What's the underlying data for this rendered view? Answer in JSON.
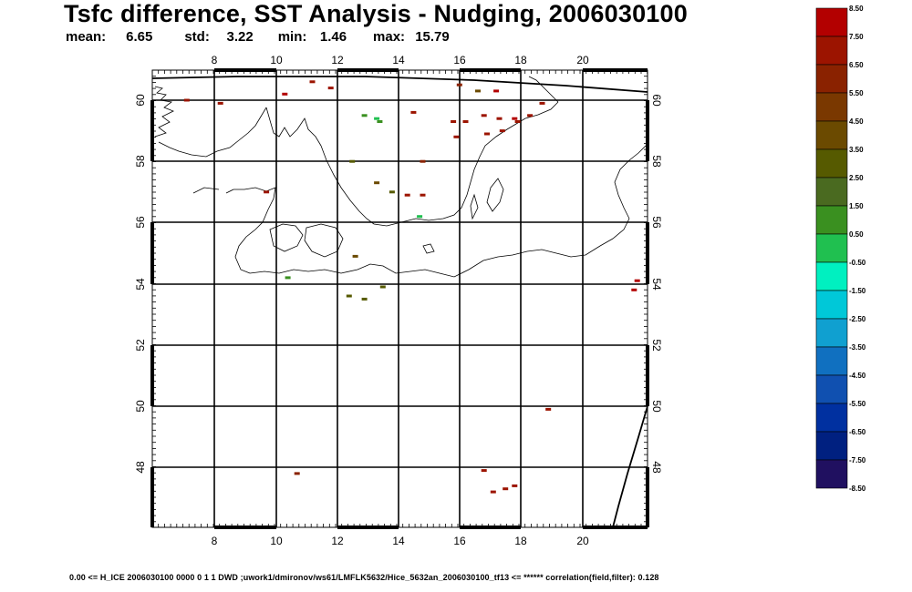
{
  "title": "Tsfc difference, SST Analysis - Nudging, 2006030100",
  "stats": {
    "mean_label": "mean:",
    "mean": "6.65",
    "std_label": "std:",
    "std": "3.22",
    "min_label": "min:",
    "min": "1.46",
    "max_label": "max:",
    "max": "15.79"
  },
  "footer": "0.00  <=  H_ICE 2006030100 0000 0 1 1 DWD ;uwork1/dmironov/ws61/LMFLK5632/Hice_5632an_2006030100_tf13  <=  ******    correlation(field,filter): 0.128",
  "map": {
    "lon_ticks": [
      "8",
      "10",
      "12",
      "14",
      "16",
      "18",
      "20"
    ],
    "lat_ticks": [
      "60",
      "58",
      "56",
      "54",
      "52",
      "50",
      "48"
    ]
  },
  "colorbar": {
    "labels": [
      "8.50",
      "7.50",
      "6.50",
      "5.50",
      "4.50",
      "3.50",
      "2.50",
      "1.50",
      "0.50",
      "-0.50",
      "-1.50",
      "-2.50",
      "-3.50",
      "-4.50",
      "-5.50",
      "-6.50",
      "-7.50",
      "-8.50"
    ],
    "colors": [
      "#b30000",
      "#9c1400",
      "#8a2200",
      "#7a3800",
      "#6b4a00",
      "#565a00",
      "#4a6a20",
      "#3a9020",
      "#20c050",
      "#00f0c0",
      "#00c8d8",
      "#10a0d0",
      "#1070c0",
      "#1050b0",
      "#0030a0",
      "#002080",
      "#201060"
    ]
  },
  "field_cells": [
    {
      "lon": 7.1,
      "lat": 60.0,
      "color": "#9c1400"
    },
    {
      "lon": 8.2,
      "lat": 59.9,
      "color": "#9c1400"
    },
    {
      "lon": 10.3,
      "lat": 60.2,
      "color": "#b30000"
    },
    {
      "lon": 11.2,
      "lat": 60.6,
      "color": "#9c1400"
    },
    {
      "lon": 11.8,
      "lat": 60.4,
      "color": "#9c1400"
    },
    {
      "lon": 12.9,
      "lat": 59.5,
      "color": "#3a9020"
    },
    {
      "lon": 13.3,
      "lat": 59.4,
      "color": "#20c050"
    },
    {
      "lon": 13.4,
      "lat": 59.3,
      "color": "#3a9020"
    },
    {
      "lon": 14.5,
      "lat": 59.6,
      "color": "#9c1400"
    },
    {
      "lon": 16.0,
      "lat": 60.5,
      "color": "#8a2200"
    },
    {
      "lon": 16.6,
      "lat": 60.3,
      "color": "#6b4a00"
    },
    {
      "lon": 17.2,
      "lat": 60.3,
      "color": "#b30000"
    },
    {
      "lon": 18.7,
      "lat": 59.9,
      "color": "#9c1400"
    },
    {
      "lon": 15.8,
      "lat": 59.3,
      "color": "#9c1400"
    },
    {
      "lon": 16.2,
      "lat": 59.3,
      "color": "#9c1400"
    },
    {
      "lon": 16.8,
      "lat": 59.5,
      "color": "#9c1400"
    },
    {
      "lon": 17.3,
      "lat": 59.4,
      "color": "#9c1400"
    },
    {
      "lon": 17.8,
      "lat": 59.4,
      "color": "#b30000"
    },
    {
      "lon": 17.9,
      "lat": 59.3,
      "color": "#9c1400"
    },
    {
      "lon": 18.3,
      "lat": 59.5,
      "color": "#9c1400"
    },
    {
      "lon": 16.9,
      "lat": 58.9,
      "color": "#9c1400"
    },
    {
      "lon": 17.4,
      "lat": 59.0,
      "color": "#9c1400"
    },
    {
      "lon": 15.9,
      "lat": 58.8,
      "color": "#9c1400"
    },
    {
      "lon": 14.8,
      "lat": 58.0,
      "color": "#8a2200"
    },
    {
      "lon": 12.5,
      "lat": 58.0,
      "color": "#565a00"
    },
    {
      "lon": 13.3,
      "lat": 57.3,
      "color": "#6b4a00"
    },
    {
      "lon": 13.8,
      "lat": 57.0,
      "color": "#565a00"
    },
    {
      "lon": 14.3,
      "lat": 56.9,
      "color": "#9c1400"
    },
    {
      "lon": 14.8,
      "lat": 56.9,
      "color": "#9c1400"
    },
    {
      "lon": 14.7,
      "lat": 56.2,
      "color": "#20c050"
    },
    {
      "lon": 9.7,
      "lat": 57.0,
      "color": "#9c1400"
    },
    {
      "lon": 12.6,
      "lat": 54.9,
      "color": "#6b4a00"
    },
    {
      "lon": 10.4,
      "lat": 54.2,
      "color": "#3a9020"
    },
    {
      "lon": 12.4,
      "lat": 53.6,
      "color": "#565a00"
    },
    {
      "lon": 12.9,
      "lat": 53.5,
      "color": "#565a00"
    },
    {
      "lon": 13.5,
      "lat": 53.9,
      "color": "#565a00"
    },
    {
      "lon": 21.7,
      "lat": 53.8,
      "color": "#b30000"
    },
    {
      "lon": 21.8,
      "lat": 54.1,
      "color": "#b30000"
    },
    {
      "lon": 18.9,
      "lat": 49.9,
      "color": "#9c1400"
    },
    {
      "lon": 10.7,
      "lat": 47.8,
      "color": "#8a2200"
    },
    {
      "lon": 16.8,
      "lat": 47.9,
      "color": "#9c1400"
    },
    {
      "lon": 17.5,
      "lat": 47.3,
      "color": "#9c1400"
    },
    {
      "lon": 17.1,
      "lat": 47.2,
      "color": "#9c1400"
    },
    {
      "lon": 17.8,
      "lat": 47.4,
      "color": "#9c1400"
    }
  ]
}
